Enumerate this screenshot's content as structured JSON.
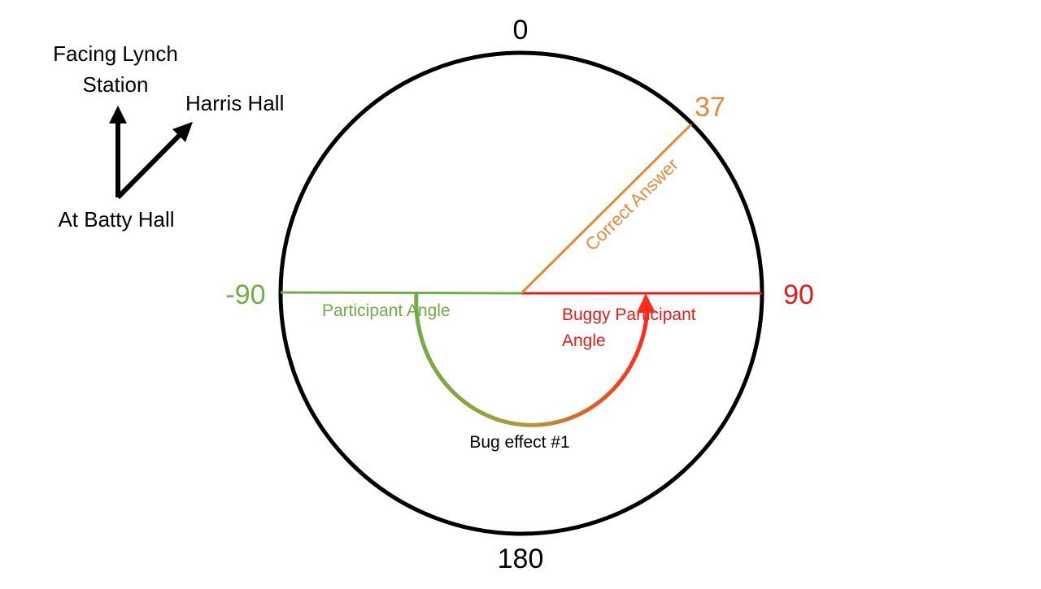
{
  "legend": {
    "facing_line1": "Facing Lynch",
    "facing_line2": "Station",
    "harris_hall": "Harris Hall",
    "at_batty_hall": "At Batty Hall"
  },
  "dial": {
    "top_label": "0",
    "bottom_label": "180",
    "left_label": "-90",
    "right_label": "90",
    "correct_label": "37"
  },
  "lines": {
    "correct_answer": "Correct Answer",
    "participant_angle": "Participant Angle",
    "buggy_line1": "Buggy Participant",
    "buggy_line2": "Angle"
  },
  "arc": {
    "caption": "Bug effect #1"
  },
  "colors": {
    "black": "#000000",
    "orange": "#e38b3b",
    "green": "#70ad47",
    "red": "#e21b1b"
  },
  "angles_deg": {
    "correct": 37,
    "participant": -90,
    "buggy": 90
  }
}
